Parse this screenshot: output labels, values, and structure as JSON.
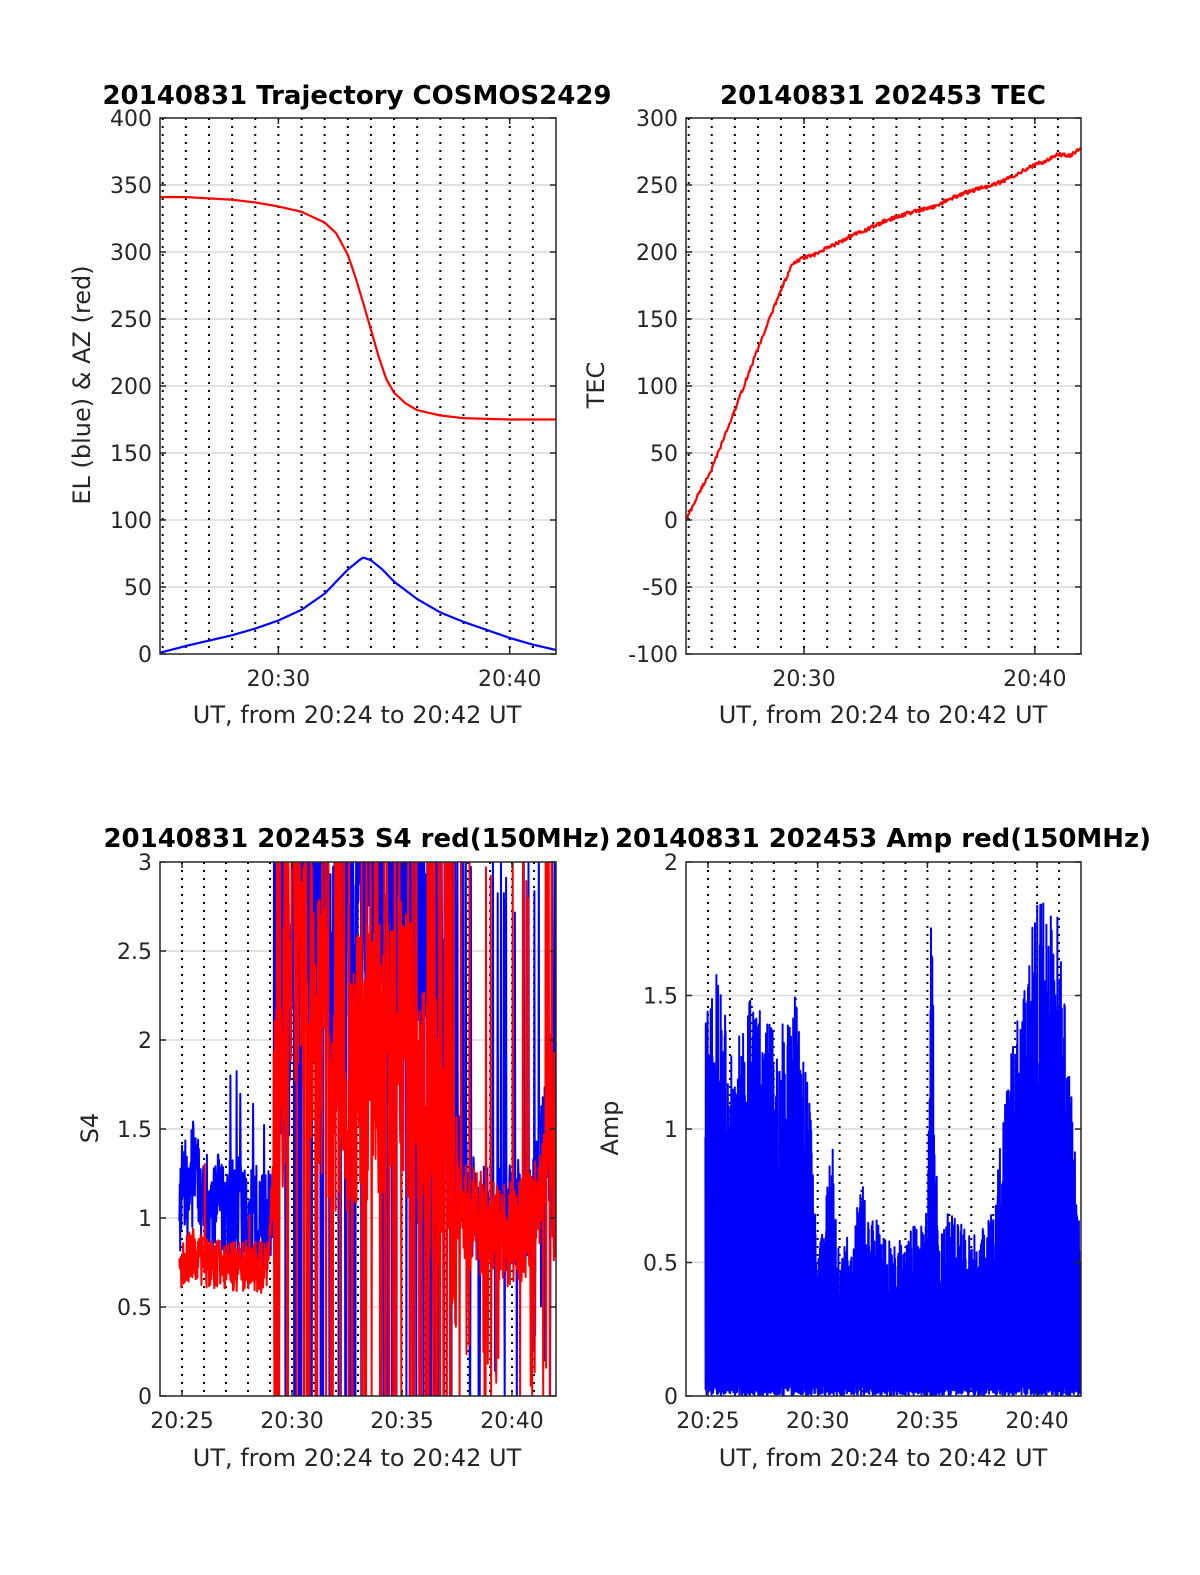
{
  "colors": {
    "azimuth": "#ff0000",
    "elevation": "#0000ff",
    "tec": "#ff0000",
    "s4_red": "#ff0000",
    "s4_blue": "#0000ff",
    "amp": "#0000ff",
    "minor_grid": "#000000",
    "major_grid": "#d9d9d9"
  },
  "chart_data": [
    {
      "type": "line",
      "title": "20140831 Trajectory COSMOS2429",
      "xlabel": "UT, from 20:24 to 20:42 UT",
      "ylabel": "EL (blue) & AZ (red)",
      "xlim": [
        "20:24:53",
        "20:42:00"
      ],
      "ylim": [
        0,
        400
      ],
      "xticks": [
        "20:30",
        "20:40"
      ],
      "yticks": [
        "0",
        "50",
        "100",
        "150",
        "200",
        "250",
        "300",
        "350",
        "400"
      ],
      "grid": "on",
      "series": [
        {
          "color": "red",
          "x": [
            "20:24:53",
            "20:26:00",
            "20:27:00",
            "20:28:00",
            "20:29:00",
            "20:30:00",
            "20:31:00",
            "20:32:00",
            "20:32:30",
            "20:33:00",
            "20:33:20",
            "20:33:40",
            "20:34:00",
            "20:34:20",
            "20:34:40",
            "20:35:00",
            "20:35:30",
            "20:36:00",
            "20:37:00",
            "20:38:00",
            "20:39:00",
            "20:40:00",
            "20:41:00",
            "20:42:00"
          ],
          "y": [
            341,
            341,
            340,
            339,
            337,
            334,
            330,
            322,
            314,
            298,
            281,
            262,
            242,
            222,
            205,
            195,
            187,
            182,
            178,
            176,
            175.5,
            175,
            175,
            175
          ]
        },
        {
          "color": "blue",
          "x": [
            "20:24:53",
            "20:26:00",
            "20:27:00",
            "20:28:00",
            "20:29:00",
            "20:30:00",
            "20:31:00",
            "20:32:00",
            "20:32:30",
            "20:33:00",
            "20:33:30",
            "20:33:40",
            "20:34:00",
            "20:34:30",
            "20:35:00",
            "20:36:00",
            "20:37:00",
            "20:38:00",
            "20:39:00",
            "20:40:00",
            "20:41:00",
            "20:42:00"
          ],
          "y": [
            1,
            6,
            10,
            14,
            19,
            25,
            33,
            45,
            54,
            63,
            70,
            72,
            70,
            63,
            54,
            41,
            31,
            24,
            18,
            12,
            7,
            3
          ]
        }
      ]
    },
    {
      "type": "line",
      "title": "20140831 202453 TEC",
      "xlabel": "UT, from 20:24 to 20:42 UT",
      "ylabel": "TEC",
      "xlim": [
        "20:24:53",
        "20:42:00"
      ],
      "ylim": [
        -100,
        300
      ],
      "xticks": [
        "20:30",
        "20:40"
      ],
      "yticks": [
        "-100",
        "-50",
        "0",
        "50",
        "100",
        "150",
        "200",
        "250",
        "300"
      ],
      "grid": "on",
      "series": [
        {
          "color": "red",
          "x": [
            "20:24:53",
            "20:25:30",
            "20:26:00",
            "20:26:30",
            "20:27:00",
            "20:27:30",
            "20:28:00",
            "20:28:30",
            "20:29:00",
            "20:29:30",
            "20:30:00",
            "20:30:30",
            "20:31:00",
            "20:31:30",
            "20:32:00",
            "20:32:30",
            "20:33:00",
            "20:33:30",
            "20:34:00",
            "20:34:30",
            "20:35:00",
            "20:35:30",
            "20:36:00",
            "20:36:30",
            "20:37:00",
            "20:37:30",
            "20:38:00",
            "20:38:30",
            "20:39:00",
            "20:39:30",
            "20:40:00",
            "20:40:30",
            "20:41:00",
            "20:41:30",
            "20:42:00"
          ],
          "y": [
            0,
            22,
            38,
            60,
            82,
            105,
            128,
            150,
            172,
            191,
            196,
            198,
            203,
            207,
            212,
            215,
            219,
            223,
            226,
            229,
            231,
            233,
            237,
            241,
            244,
            247,
            249,
            252,
            256,
            261,
            265,
            268,
            273,
            272,
            277
          ]
        }
      ]
    },
    {
      "type": "line",
      "title": "20140831 202453 S4 red(150MHz)",
      "xlabel": "UT, from 20:24 to 20:42 UT",
      "ylabel": "S4",
      "xlim": [
        "20:24:00",
        "20:42:00"
      ],
      "ylim": [
        0,
        3
      ],
      "xticks": [
        "20:25",
        "20:30",
        "20:35",
        "20:40"
      ],
      "yticks": [
        "0",
        "0.5",
        "1",
        "1.5",
        "2",
        "2.5",
        "3"
      ],
      "grid": "on",
      "series": [
        {
          "color": "blue",
          "x": [
            "20:24:53",
            "20:25:30",
            "20:26:00",
            "20:27:00",
            "20:28:00",
            "20:29:00",
            "20:29:20",
            "20:30:00",
            "20:32:00",
            "20:35:00",
            "20:38:00",
            "20:39:00",
            "20:40:00",
            "20:41:00",
            "20:42:00"
          ],
          "y": [
            1.1,
            1.25,
            1.1,
            1.05,
            1.0,
            1.0,
            1.3,
            2.5,
            2.8,
            3.0,
            1.1,
            1.0,
            1.0,
            1.1,
            1.8
          ]
        },
        {
          "color": "red",
          "x": [
            "20:24:53",
            "20:25:30",
            "20:26:00",
            "20:27:00",
            "20:28:00",
            "20:28:50",
            "20:29:20",
            "20:30:00",
            "20:32:00",
            "20:35:00",
            "20:38:00",
            "20:39:00",
            "20:40:00",
            "20:41:00",
            "20:42:00"
          ],
          "y": [
            0.75,
            0.8,
            0.75,
            0.75,
            0.72,
            0.72,
            1.5,
            2.5,
            1.8,
            2.0,
            1.0,
            0.95,
            0.9,
            1.0,
            1.5
          ]
        }
      ]
    },
    {
      "type": "line",
      "title": "20140831 202453 Amp red(150MHz)",
      "xlabel": "UT, from 20:24 to 20:42 UT",
      "ylabel": "Amp",
      "xlim": [
        "20:24:00",
        "20:42:00"
      ],
      "ylim": [
        0,
        2
      ],
      "xticks": [
        "20:25",
        "20:30",
        "20:35",
        "20:40"
      ],
      "yticks": [
        "0",
        "0.5",
        "1",
        "1.5",
        "2"
      ],
      "grid": "on",
      "series": [
        {
          "color": "blue",
          "x": [
            "20:24:53",
            "20:25:30",
            "20:26:00",
            "20:27:00",
            "20:28:00",
            "20:29:00",
            "20:29:40",
            "20:30:00",
            "20:30:40",
            "20:31:00",
            "20:32:00",
            "20:33:00",
            "20:34:00",
            "20:35:00",
            "20:35:10",
            "20:35:30",
            "20:36:00",
            "20:37:00",
            "20:38:00",
            "20:38:30",
            "20:39:00",
            "20:40:00",
            "20:41:00",
            "20:41:40",
            "20:42:00"
          ],
          "y": [
            1.4,
            1.7,
            1.3,
            1.5,
            1.4,
            1.5,
            1.1,
            0.5,
            1.0,
            0.5,
            0.8,
            0.6,
            0.6,
            0.7,
            1.9,
            0.6,
            0.7,
            0.6,
            0.7,
            1.1,
            1.4,
            1.9,
            1.8,
            1.0,
            0.6
          ]
        }
      ]
    }
  ]
}
